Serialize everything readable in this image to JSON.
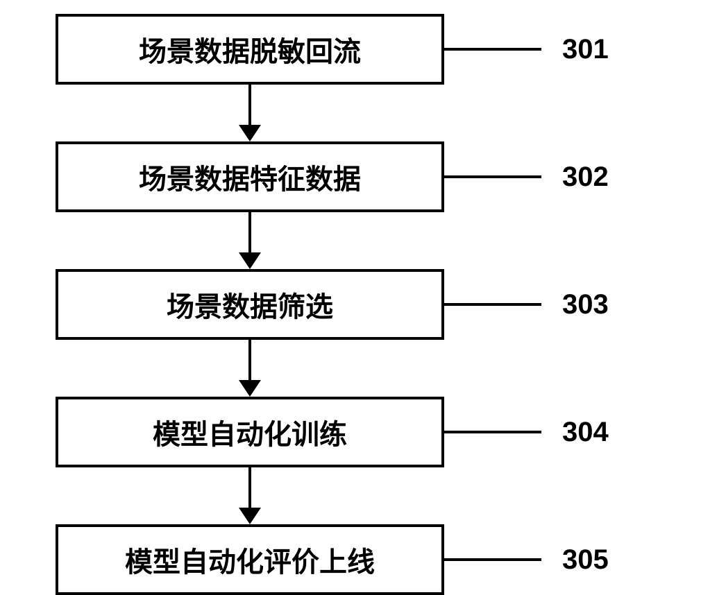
{
  "flowchart": {
    "type": "flowchart",
    "direction": "vertical",
    "background_color": "#ffffff",
    "border_color": "#000000",
    "border_width": 4,
    "text_color": "#000000",
    "box_min_width": 560,
    "box_fontsize": 40,
    "label_fontsize": 40,
    "label_connector_width": 140,
    "label_connector_height": 4,
    "label_margin_left": 30,
    "arrow_line_width": 4,
    "arrow_line_height": 58,
    "arrow_head_width": 32,
    "arrow_head_height": 24,
    "steps": [
      {
        "text": "场景数据脱敏回流",
        "label": "301"
      },
      {
        "text": "场景数据特征数据",
        "label": "302"
      },
      {
        "text": "场景数据筛选",
        "label": "303"
      },
      {
        "text": "模型自动化训练",
        "label": "304"
      },
      {
        "text": "模型自动化评价上线",
        "label": "305"
      }
    ]
  }
}
